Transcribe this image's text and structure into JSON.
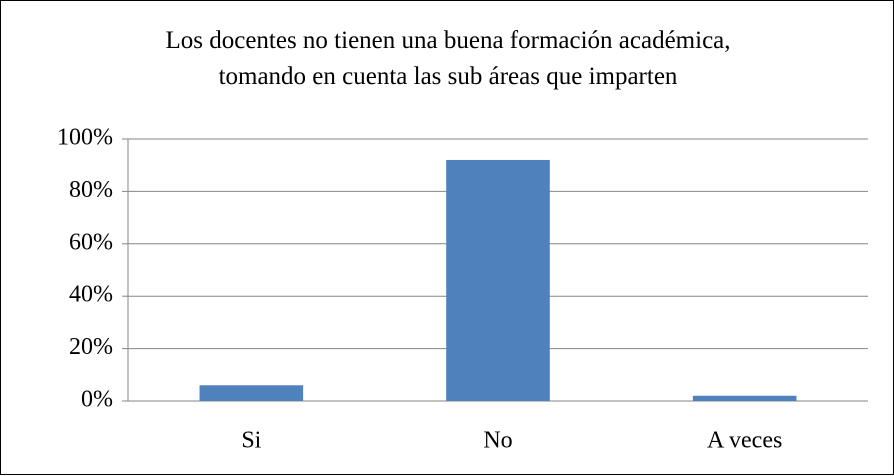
{
  "chart_data": {
    "type": "bar",
    "title": "Los docentes no tienen una buena formación académica, tomando en cuenta las sub áreas que imparten",
    "categories": [
      "Si",
      "No",
      "A veces"
    ],
    "values": [
      6,
      92,
      2
    ],
    "color": "#4f81bd",
    "ylim": [
      0,
      100
    ],
    "yticks": [
      {
        "value": 0,
        "label": "0%"
      },
      {
        "value": 20,
        "label": "20%"
      },
      {
        "value": 40,
        "label": "40%"
      },
      {
        "value": 60,
        "label": "60%"
      },
      {
        "value": 80,
        "label": "80%"
      },
      {
        "value": 100,
        "label": "100%"
      }
    ],
    "grid": true
  }
}
